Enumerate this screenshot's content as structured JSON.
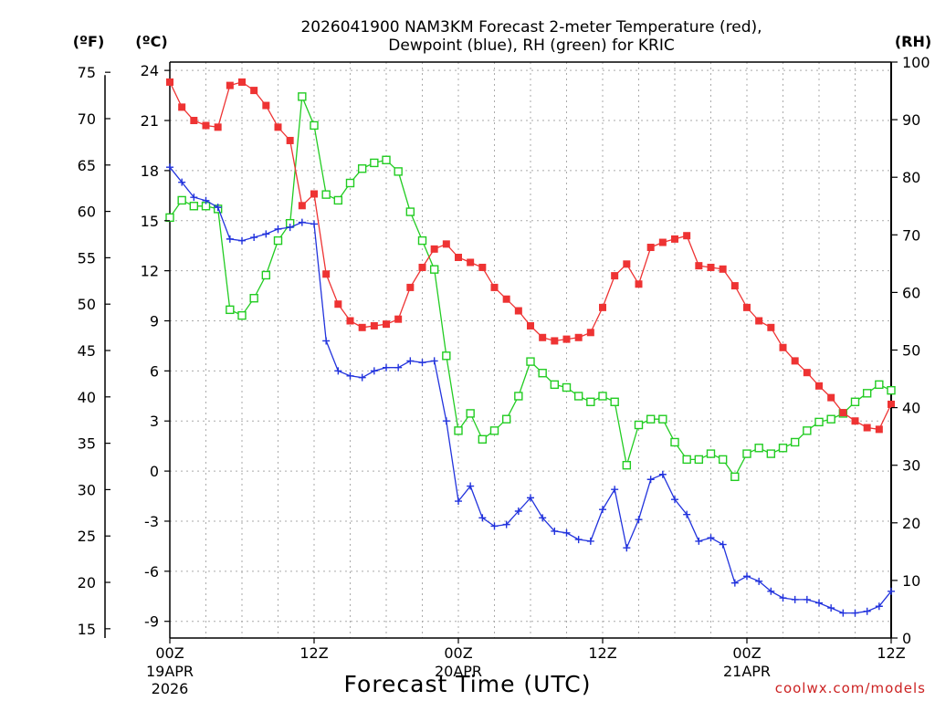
{
  "chart_data": {
    "type": "line",
    "title_line1": "2026041900 NAM3KM Forecast 2-meter Temperature (red),",
    "title_line2": "Dewpoint (blue), RH (green) for KRIC",
    "xlabel": "Forecast Time (UTC)",
    "credit": "coolwx.com/models",
    "units": {
      "fahrenheit": "(ºF)",
      "celsius": "(ºC)",
      "rh": "(RH)"
    },
    "x_range_hours": [
      0,
      60
    ],
    "y_celsius_range": [
      -10,
      24.5
    ],
    "y_rh_range": [
      0,
      100
    ],
    "celsius_ticks": [
      "24",
      "21",
      "18",
      "15",
      "12",
      "9",
      "6",
      "3",
      "0",
      "-3",
      "-6",
      "-9"
    ],
    "fahrenheit_ticks": [
      "75",
      "70",
      "65",
      "60",
      "55",
      "50",
      "45",
      "40",
      "35",
      "30",
      "25",
      "20",
      "15"
    ],
    "rh_ticks": [
      "100",
      "90",
      "80",
      "70",
      "60",
      "50",
      "40",
      "30",
      "20",
      "10",
      "0"
    ],
    "x_ticks": [
      {
        "hour": 0,
        "label": "00Z",
        "date": "19APR",
        "year": "2026"
      },
      {
        "hour": 12,
        "label": "12Z",
        "date": "",
        "year": ""
      },
      {
        "hour": 24,
        "label": "00Z",
        "date": "20APR",
        "year": ""
      },
      {
        "hour": 36,
        "label": "12Z",
        "date": "",
        "year": ""
      },
      {
        "hour": 48,
        "label": "00Z",
        "date": "21APR",
        "year": ""
      },
      {
        "hour": 60,
        "label": "12Z",
        "date": "",
        "year": ""
      }
    ],
    "hours": [
      0,
      1,
      2,
      3,
      4,
      5,
      6,
      7,
      8,
      9,
      10,
      11,
      12,
      13,
      14,
      15,
      16,
      17,
      18,
      19,
      20,
      21,
      22,
      23,
      24,
      25,
      26,
      27,
      28,
      29,
      30,
      31,
      32,
      33,
      34,
      35,
      36,
      37,
      38,
      39,
      40,
      41,
      42,
      43,
      44,
      45,
      46,
      47,
      48,
      49,
      50,
      51,
      52,
      53,
      54,
      55,
      56,
      57,
      58,
      59,
      60
    ],
    "series": [
      {
        "name": "Temperature",
        "unit": "C",
        "color": "#ee3333",
        "marker": "square-filled",
        "values": [
          23.3,
          21.8,
          21.0,
          20.7,
          20.6,
          23.1,
          23.3,
          22.8,
          21.9,
          20.6,
          19.8,
          15.9,
          16.6,
          11.8,
          10.0,
          9.0,
          8.6,
          8.7,
          8.8,
          9.1,
          11.0,
          12.2,
          13.3,
          13.6,
          12.8,
          12.5,
          12.2,
          11.0,
          10.3,
          9.6,
          8.7,
          8.0,
          7.8,
          7.9,
          8.0,
          8.3,
          9.8,
          11.7,
          12.4,
          11.2,
          13.4,
          13.7,
          13.9,
          14.1,
          12.3,
          12.2,
          12.1,
          11.1,
          9.8,
          9.0,
          8.6,
          7.4,
          6.6,
          5.9,
          5.1,
          4.4,
          3.5,
          3.0,
          2.6,
          2.5,
          4.0
        ]
      },
      {
        "name": "Dewpoint",
        "unit": "C",
        "color": "#2233dd",
        "marker": "plus",
        "values": [
          18.2,
          17.3,
          16.4,
          16.2,
          15.8,
          13.9,
          13.8,
          14.0,
          14.2,
          14.5,
          14.6,
          14.9,
          14.8,
          7.8,
          6.0,
          5.7,
          5.6,
          6.0,
          6.2,
          6.2,
          6.6,
          6.5,
          6.6,
          3.0,
          -1.8,
          -0.9,
          -2.8,
          -3.3,
          -3.2,
          -2.4,
          -1.6,
          -2.8,
          -3.6,
          -3.7,
          -4.1,
          -4.2,
          -2.3,
          -1.1,
          -4.6,
          -2.9,
          -0.5,
          -0.2,
          -1.7,
          -2.6,
          -4.2,
          -4.0,
          -4.4,
          -6.7,
          -6.3,
          -6.6,
          -7.2,
          -7.6,
          -7.7,
          -7.7,
          -7.9,
          -8.2,
          -8.5,
          -8.5,
          -8.4,
          -8.1,
          -7.2
        ]
      },
      {
        "name": "RH",
        "unit": "%",
        "color": "#22cc22",
        "marker": "square-open",
        "values": [
          73,
          76,
          75,
          75,
          74.5,
          57,
          56,
          59,
          63,
          69,
          72,
          94,
          89,
          77,
          76,
          79,
          81.5,
          82.5,
          83,
          81,
          74,
          69,
          64,
          49,
          36,
          39,
          34.5,
          36,
          38,
          42,
          48,
          46,
          44,
          43.5,
          42,
          41,
          42,
          41,
          30,
          37,
          38,
          38,
          34,
          31,
          31,
          32,
          31,
          28,
          32,
          33,
          32,
          33,
          34,
          36,
          37.5,
          38,
          39,
          41,
          42.5,
          44,
          43
        ]
      }
    ]
  }
}
